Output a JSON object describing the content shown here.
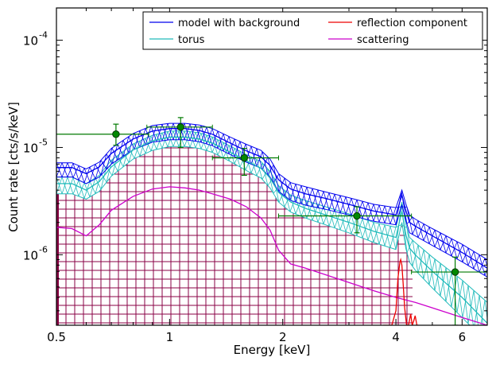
{
  "chart_data": {
    "type": "line",
    "xlabel": "Energy [keV]",
    "ylabel": "Count rate [cts/s/keV]",
    "xscale": "log",
    "yscale": "log",
    "xlim": [
      0.5,
      7.0
    ],
    "ylim": [
      2.2e-07,
      0.0002
    ],
    "xticks": [
      {
        "value": 0.5,
        "label": "0.5"
      },
      {
        "value": 1,
        "label": "1"
      },
      {
        "value": 2,
        "label": "2"
      },
      {
        "value": 4,
        "label": "4"
      },
      {
        "value": 6,
        "label": "6"
      }
    ],
    "yticks": [
      {
        "value": 1e-06,
        "label": "10",
        "exp": "-6"
      },
      {
        "value": 1e-05,
        "label": "10",
        "exp": "-5"
      },
      {
        "value": 0.0001,
        "label": "10",
        "exp": "-4"
      }
    ],
    "legend": {
      "placement": "top-right",
      "columns": 2,
      "entries": [
        {
          "name": "model with background",
          "color": "#0000ee"
        },
        {
          "name": "reflection component",
          "color": "#ee0000"
        },
        {
          "name": "torus",
          "color": "#22bbbb"
        },
        {
          "name": "scattering",
          "color": "#cc00cc"
        }
      ]
    },
    "data_points": {
      "color": "#007a00",
      "points": [
        {
          "x": 0.72,
          "y": 1.33e-05,
          "xerr": [
            0.5,
            0.88
          ],
          "yerr": [
            1.05e-05,
            1.65e-05
          ]
        },
        {
          "x": 1.07,
          "y": 1.55e-05,
          "xerr": [
            0.87,
            1.3
          ],
          "yerr": [
            1e-05,
            1.9e-05
          ]
        },
        {
          "x": 1.58,
          "y": 8e-06,
          "xerr": [
            1.3,
            1.95
          ],
          "yerr": [
            5.5e-06,
            9.8e-06
          ]
        },
        {
          "x": 3.15,
          "y": 2.3e-06,
          "xerr": [
            1.95,
            4.4
          ],
          "yerr": [
            1.6e-06,
            2.8e-06
          ]
        },
        {
          "x": 5.75,
          "y": 6.9e-07,
          "xerr": [
            4.4,
            7.0
          ],
          "yerr": [
            2.2e-07,
            9.5e-07
          ]
        }
      ]
    },
    "series": [
      {
        "name": "model with background",
        "color": "#0000ee",
        "band": true,
        "x": [
          0.5,
          0.55,
          0.6,
          0.65,
          0.7,
          0.8,
          0.9,
          1.0,
          1.1,
          1.2,
          1.3,
          1.45,
          1.6,
          1.75,
          1.85,
          1.95,
          2.1,
          2.3,
          2.6,
          3.0,
          3.5,
          4.0,
          4.15,
          4.25,
          4.35,
          4.5,
          5.0,
          6.0,
          7.0
        ],
        "y": [
          6.5e-06,
          6.5e-06,
          5.7e-06,
          6.6e-06,
          8.8e-06,
          1.2e-05,
          1.42e-05,
          1.5e-05,
          1.5e-05,
          1.44e-05,
          1.33e-05,
          1.1e-05,
          9.3e-06,
          8.2e-06,
          6.8e-06,
          5e-06,
          4.1e-06,
          3.7e-06,
          3.35e-06,
          2.95e-06,
          2.55e-06,
          2.35e-06,
          3.6e-06,
          2.6e-06,
          2e-06,
          1.85e-06,
          1.5e-06,
          1.05e-06,
          7.5e-07
        ],
        "y_upper": [
          7.2e-06,
          7.2e-06,
          6.3e-06,
          7.3e-06,
          9.8e-06,
          1.35e-05,
          1.6e-05,
          1.68e-05,
          1.68e-05,
          1.62e-05,
          1.5e-05,
          1.25e-05,
          1.07e-05,
          9.4e-06,
          7.8e-06,
          5.7e-06,
          4.7e-06,
          4.3e-06,
          3.85e-06,
          3.4e-06,
          2.95e-06,
          2.75e-06,
          4e-06,
          3e-06,
          2.35e-06,
          2.15e-06,
          1.75e-06,
          1.25e-06,
          9e-07
        ],
        "y_lower": [
          5.3e-06,
          5.3e-06,
          4.6e-06,
          5.3e-06,
          7e-06,
          9.5e-06,
          1.12e-05,
          1.18e-05,
          1.18e-05,
          1.13e-05,
          1.04e-05,
          8.6e-06,
          7.3e-06,
          6.4e-06,
          5.3e-06,
          3.9e-06,
          3.2e-06,
          2.9e-06,
          2.65e-06,
          2.35e-06,
          2.05e-06,
          1.9e-06,
          2.9e-06,
          2.1e-06,
          1.6e-06,
          1.5e-06,
          1.22e-06,
          8.6e-07,
          6.2e-07
        ]
      },
      {
        "name": "torus",
        "color": "#22bbbb",
        "band": true,
        "x": [
          0.5,
          0.55,
          0.6,
          0.65,
          0.7,
          0.8,
          0.9,
          1.0,
          1.1,
          1.2,
          1.3,
          1.45,
          1.6,
          1.75,
          1.85,
          1.95,
          2.1,
          2.3,
          2.6,
          3.0,
          3.5,
          4.0,
          4.15,
          4.25,
          4.35,
          4.5,
          5.0,
          6.0,
          7.0
        ],
        "y": [
          4.6e-06,
          4.6e-06,
          4e-06,
          4.8e-06,
          6.6e-06,
          9.5e-06,
          1.15e-05,
          1.25e-05,
          1.25e-05,
          1.2e-05,
          1.1e-05,
          9e-06,
          7.5e-06,
          6.4e-06,
          5.2e-06,
          3.8e-06,
          3.1e-06,
          2.7e-06,
          2.35e-06,
          2e-06,
          1.65e-06,
          1.45e-06,
          2.55e-06,
          1.55e-06,
          1.15e-06,
          1e-06,
          7e-07,
          4e-07,
          2.3e-07
        ],
        "y_upper": [
          5.3e-06,
          5.3e-06,
          4.6e-06,
          5.5e-06,
          7.6e-06,
          1.08e-05,
          1.3e-05,
          1.42e-05,
          1.42e-05,
          1.37e-05,
          1.25e-05,
          1.03e-05,
          8.6e-06,
          7.4e-06,
          6e-06,
          4.4e-06,
          3.6e-06,
          3.2e-06,
          2.8e-06,
          2.4e-06,
          2e-06,
          1.8e-06,
          3.1e-06,
          1.95e-06,
          1.45e-06,
          1.3e-06,
          9.5e-07,
          5.8e-07,
          3.6e-07
        ],
        "y_lower": [
          3.7e-06,
          3.7e-06,
          3.3e-06,
          3.9e-06,
          5.4e-06,
          7.8e-06,
          9.4e-06,
          1.02e-05,
          1.02e-05,
          9.8e-06,
          9e-06,
          7.4e-06,
          6.1e-06,
          5.2e-06,
          4.2e-06,
          3.1e-06,
          2.5e-06,
          2.2e-06,
          1.9e-06,
          1.6e-06,
          1.3e-06,
          1.12e-06,
          2e-06,
          1.15e-06,
          8.5e-07,
          7.2e-07,
          4.9e-07,
          2.6e-07,
          1.5e-07
        ]
      },
      {
        "name": "scattering",
        "color": "#cc00cc",
        "band": false,
        "x": [
          0.5,
          0.55,
          0.6,
          0.65,
          0.7,
          0.8,
          0.9,
          1.0,
          1.1,
          1.2,
          1.3,
          1.45,
          1.6,
          1.75,
          1.85,
          1.95,
          2.1,
          2.3,
          2.6,
          3.0,
          3.5,
          4.0,
          4.5,
          5.0,
          6.0,
          7.0
        ],
        "y": [
          1.8e-06,
          1.75e-06,
          1.5e-06,
          1.9e-06,
          2.6e-06,
          3.5e-06,
          4.1e-06,
          4.3e-06,
          4.2e-06,
          4e-06,
          3.7e-06,
          3.3e-06,
          2.8e-06,
          2.2e-06,
          1.7e-06,
          1.1e-06,
          8.2e-07,
          7.5e-07,
          6.5e-07,
          5.5e-07,
          4.6e-07,
          4e-07,
          3.6e-07,
          3.2e-07,
          2.6e-07,
          2.2e-07
        ]
      },
      {
        "name": "reflection component",
        "color": "#ee0000",
        "band": false,
        "x": [
          3.7,
          3.9,
          4.0,
          4.05,
          4.1,
          4.12,
          4.15,
          4.18,
          4.22,
          4.27,
          4.32,
          4.38,
          4.42,
          4.46,
          4.5,
          4.55,
          4.6
        ],
        "y": [
          2.2e-07,
          2.2e-07,
          3e-07,
          6e-07,
          8.5e-07,
          9e-07,
          8e-07,
          5.5e-07,
          3.2e-07,
          2.2e-07,
          2.2e-07,
          2.8e-07,
          2.2e-07,
          2.4e-07,
          2.7e-07,
          2.2e-07,
          2.2e-07
        ]
      }
    ],
    "grid_region": {
      "color": "#880044",
      "xrange": [
        0.5,
        4.45
      ],
      "ytop_follows": "torus.y_lower"
    },
    "grid": false
  }
}
